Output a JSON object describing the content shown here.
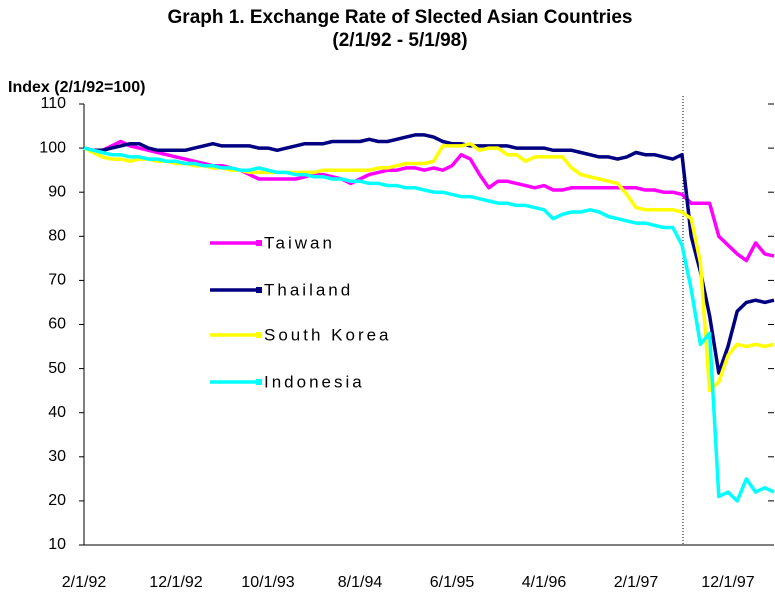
{
  "chart_data": {
    "type": "line",
    "title": "Graph 1. Exchange Rate of Slected Asian Countries",
    "subtitle": "(2/1/92 - 5/1/98)",
    "y_label": "Index (2/1/92=100)",
    "categories": [
      "2/1/92",
      null,
      null,
      null,
      null,
      null,
      null,
      null,
      null,
      null,
      "12/1/92",
      null,
      null,
      null,
      null,
      null,
      null,
      null,
      null,
      null,
      "10/1/93",
      null,
      null,
      null,
      null,
      null,
      null,
      null,
      null,
      null,
      "8/1/94",
      null,
      null,
      null,
      null,
      null,
      null,
      null,
      null,
      null,
      "6/1/95",
      null,
      null,
      null,
      null,
      null,
      null,
      null,
      null,
      null,
      "4/1/96",
      null,
      null,
      null,
      null,
      null,
      null,
      null,
      null,
      null,
      "2/1/97",
      null,
      null,
      null,
      null,
      null,
      null,
      null,
      null,
      null,
      "12/1/97",
      null,
      null,
      null,
      null,
      null
    ],
    "ylim": [
      10,
      110
    ],
    "yticks": [
      10,
      20,
      30,
      40,
      50,
      60,
      70,
      80,
      90,
      100,
      110
    ],
    "series": [
      {
        "name": "Taiwan",
        "color": "#ff00ff",
        "values": [
          100,
          99.5,
          99.5,
          100.5,
          101.5,
          100.5,
          100,
          99.5,
          99,
          98.5,
          98,
          97.5,
          97,
          96.5,
          96,
          96,
          95.5,
          95,
          94,
          93,
          93,
          93,
          93,
          93,
          93.5,
          94,
          94,
          93.5,
          93,
          92,
          93,
          94,
          94.5,
          95,
          95,
          95.5,
          95.5,
          95,
          95.5,
          95,
          96,
          98.5,
          97.5,
          94,
          91,
          92.5,
          92.5,
          92,
          91.5,
          91,
          91.5,
          90.5,
          90.5,
          91,
          91,
          91,
          91,
          91,
          91,
          91,
          91,
          90.5,
          90.5,
          90,
          90,
          89.5,
          87.5,
          87.5,
          87.5,
          80,
          78,
          76,
          74.5,
          78.5,
          76,
          75.5
        ]
      },
      {
        "name": "Thailand",
        "color": "#000080",
        "values": [
          100,
          99.5,
          99.5,
          100,
          100.5,
          101,
          101,
          100,
          99.5,
          99.5,
          99.5,
          99.5,
          100,
          100.5,
          101,
          100.5,
          100.5,
          100.5,
          100.5,
          100,
          100,
          99.5,
          100,
          100.5,
          101,
          101,
          101,
          101.5,
          101.5,
          101.5,
          101.5,
          102,
          101.5,
          101.5,
          102,
          102.5,
          103,
          103,
          102.5,
          101.5,
          101,
          101,
          100.5,
          100.5,
          100.5,
          100.5,
          100.5,
          100,
          100,
          100,
          100,
          99.5,
          99.5,
          99.5,
          99,
          98.5,
          98,
          98,
          97.5,
          98,
          99,
          98.5,
          98.5,
          98,
          97.5,
          98.5,
          80,
          72,
          62,
          49,
          55,
          63,
          65,
          65.5,
          65,
          65.5
        ]
      },
      {
        "name": "South Korea",
        "color": "#ffff00",
        "values": [
          100,
          99,
          98,
          97.5,
          97.5,
          97,
          97.5,
          97.5,
          97,
          97,
          96.5,
          96.5,
          96,
          96,
          95.5,
          95.5,
          95,
          95,
          94.5,
          94.5,
          94.5,
          94.5,
          94.5,
          94.5,
          94.5,
          94.5,
          95,
          95,
          95,
          95,
          95,
          95,
          95.5,
          95.5,
          96,
          96.5,
          96.5,
          96.5,
          97,
          100.5,
          100.5,
          100.5,
          101,
          99.5,
          100,
          100,
          98.5,
          98.5,
          97,
          98,
          98,
          98,
          98,
          95.5,
          94,
          93.5,
          93,
          92.5,
          92,
          89.5,
          86.5,
          86,
          86,
          86,
          86,
          85.5,
          84,
          74,
          45,
          47,
          53,
          55.5,
          55,
          55.5,
          55,
          55.5
        ]
      },
      {
        "name": "Indonesia",
        "color": "#00ffff",
        "values": [
          100,
          99.5,
          99,
          98.5,
          98.5,
          98,
          98,
          97.5,
          97.5,
          97,
          97,
          96.5,
          96.5,
          96,
          96,
          95.5,
          95.5,
          95,
          95,
          95.5,
          95,
          94.5,
          94.5,
          94,
          94,
          93.5,
          93.5,
          93,
          93,
          92.5,
          92.5,
          92,
          92,
          91.5,
          91.5,
          91,
          91,
          90.5,
          90,
          90,
          89.5,
          89,
          89,
          88.5,
          88,
          87.5,
          87.5,
          87,
          87,
          86.5,
          86,
          84,
          85,
          85.5,
          85.5,
          86,
          85.5,
          84.5,
          84,
          83.5,
          83,
          83,
          82.5,
          82,
          82,
          78,
          68,
          55.5,
          58,
          21,
          22,
          20,
          25,
          22,
          23,
          22
        ]
      }
    ]
  }
}
